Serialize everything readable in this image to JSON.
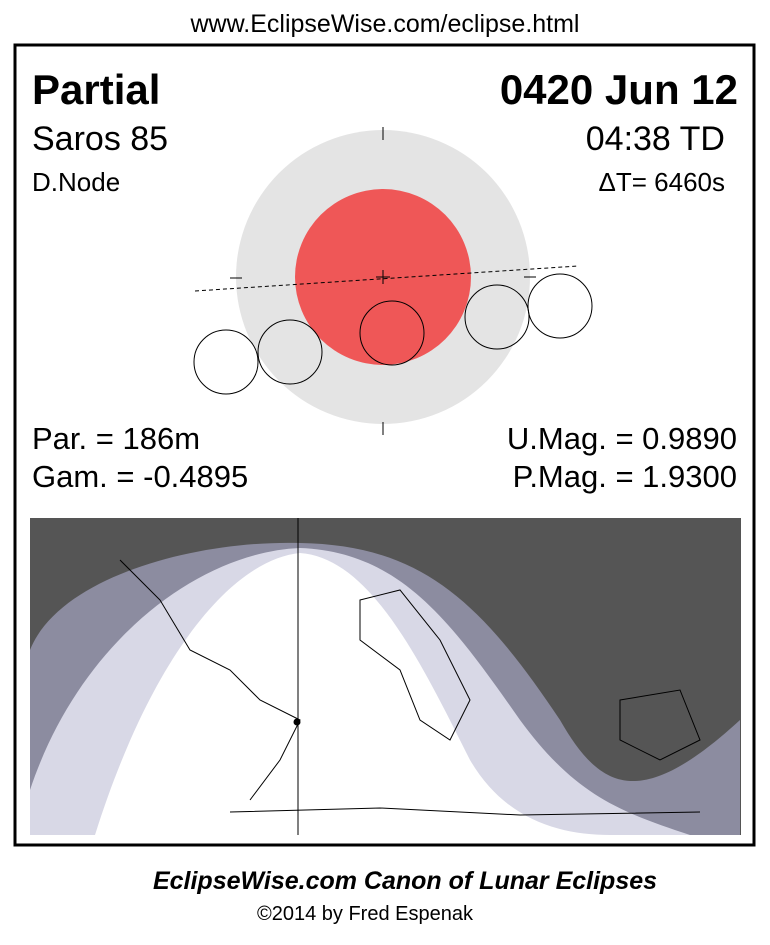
{
  "header": {
    "url": "www.EclipseWise.com/eclipse.html"
  },
  "eclipse": {
    "type": "Partial",
    "date": "0420 Jun 12",
    "saros": "Saros  85",
    "time": "04:38 TD",
    "node": "D.Node",
    "delta_t": "ΔT=   6460s"
  },
  "stats": {
    "duration": "Par. = 186m",
    "gamma": "Gam. = -0.4895",
    "umag": "U.Mag. = 0.9890",
    "pmag": "P.Mag. = 1.9300"
  },
  "footer": {
    "title": "EclipseWise.com Canon of Lunar Eclipses",
    "credit": "©2014 by Fred Espenak"
  }
}
